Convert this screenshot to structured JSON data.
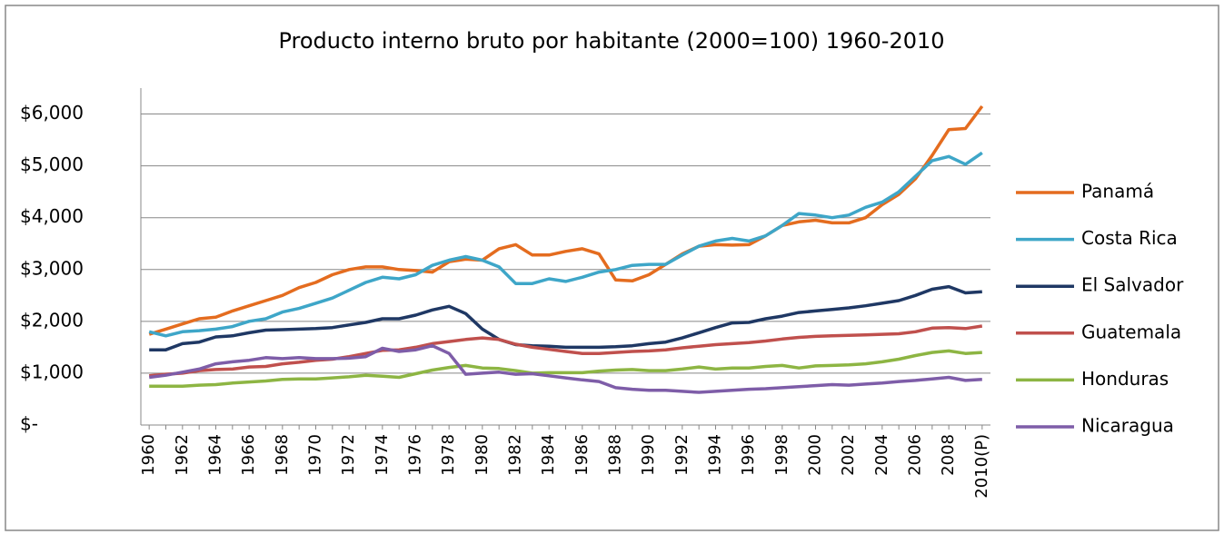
{
  "chart_data": {
    "type": "line",
    "title": "Producto interno bruto por habitante (2000=100) 1960-2010",
    "categories": [
      "1960",
      null,
      "1962",
      null,
      "1964",
      null,
      "1966",
      null,
      "1968",
      null,
      "1970",
      null,
      "1972",
      null,
      "1974",
      null,
      "1976",
      null,
      "1978",
      null,
      "1980",
      null,
      "1982",
      null,
      "1984",
      null,
      "1986",
      null,
      "1988",
      null,
      "1990",
      null,
      "1992",
      null,
      "1994",
      null,
      "1996",
      null,
      "1998",
      null,
      "2000",
      null,
      "2002",
      null,
      "2004",
      null,
      "2006",
      null,
      "2008",
      null,
      "2010(P)"
    ],
    "series": [
      {
        "name": "Panamá",
        "color": "#e46c1f",
        "values": [
          1750,
          1850,
          1950,
          2050,
          2080,
          2200,
          2300,
          2400,
          2500,
          2650,
          2750,
          2900,
          3000,
          3050,
          3050,
          3000,
          2980,
          2950,
          3150,
          3200,
          3180,
          3400,
          3480,
          3280,
          3280,
          3350,
          3400,
          3300,
          2800,
          2780,
          2900,
          3100,
          3300,
          3450,
          3480,
          3470,
          3480,
          3650,
          3850,
          3920,
          3950,
          3900,
          3900,
          4000,
          4250,
          4450,
          4750,
          5200,
          5700,
          5720,
          6150
        ]
      },
      {
        "name": "Costa Rica",
        "color": "#3ea6c8",
        "values": [
          1800,
          1720,
          1800,
          1820,
          1850,
          1900,
          2000,
          2050,
          2180,
          2250,
          2350,
          2450,
          2600,
          2750,
          2850,
          2820,
          2900,
          3080,
          3180,
          3250,
          3180,
          3050,
          2730,
          2730,
          2820,
          2770,
          2850,
          2950,
          3000,
          3080,
          3100,
          3100,
          3280,
          3450,
          3550,
          3600,
          3550,
          3650,
          3850,
          4080,
          4050,
          4000,
          4050,
          4200,
          4300,
          4500,
          4800,
          5100,
          5180,
          5030,
          5250
        ]
      },
      {
        "name": "El Salvador",
        "color": "#1f3864",
        "values": [
          1450,
          1450,
          1570,
          1600,
          1700,
          1720,
          1780,
          1830,
          1840,
          1850,
          1860,
          1880,
          1930,
          1980,
          2050,
          2050,
          2120,
          2220,
          2290,
          2150,
          1850,
          1650,
          1550,
          1530,
          1520,
          1500,
          1500,
          1500,
          1510,
          1530,
          1570,
          1600,
          1680,
          1780,
          1880,
          1970,
          1980,
          2050,
          2100,
          2170,
          2200,
          2230,
          2260,
          2300,
          2350,
          2400,
          2500,
          2620,
          2670,
          2550,
          2570
        ]
      },
      {
        "name": "Guatemala",
        "color": "#c0504d",
        "values": [
          950,
          980,
          1000,
          1050,
          1070,
          1080,
          1120,
          1130,
          1180,
          1210,
          1250,
          1270,
          1320,
          1380,
          1440,
          1450,
          1500,
          1570,
          1610,
          1650,
          1680,
          1650,
          1560,
          1500,
          1460,
          1420,
          1380,
          1380,
          1400,
          1420,
          1430,
          1450,
          1490,
          1520,
          1550,
          1570,
          1590,
          1620,
          1660,
          1690,
          1710,
          1720,
          1730,
          1740,
          1750,
          1760,
          1800,
          1870,
          1880,
          1860,
          1910
        ]
      },
      {
        "name": "Honduras",
        "color": "#8db543",
        "values": [
          750,
          750,
          750,
          770,
          780,
          810,
          830,
          850,
          880,
          890,
          890,
          910,
          930,
          960,
          940,
          920,
          990,
          1060,
          1110,
          1150,
          1100,
          1090,
          1050,
          1000,
          1010,
          1010,
          1010,
          1040,
          1060,
          1070,
          1050,
          1050,
          1080,
          1120,
          1080,
          1100,
          1100,
          1130,
          1150,
          1100,
          1140,
          1150,
          1160,
          1180,
          1220,
          1270,
          1340,
          1400,
          1430,
          1380,
          1400
        ]
      },
      {
        "name": "Nicaragua",
        "color": "#7e5da8",
        "values": [
          920,
          960,
          1020,
          1080,
          1180,
          1220,
          1250,
          1300,
          1280,
          1300,
          1280,
          1280,
          1290,
          1320,
          1480,
          1420,
          1450,
          1530,
          1380,
          980,
          1000,
          1020,
          980,
          990,
          950,
          910,
          870,
          840,
          720,
          690,
          670,
          670,
          650,
          630,
          650,
          670,
          690,
          700,
          720,
          740,
          760,
          780,
          770,
          790,
          810,
          840,
          860,
          890,
          920,
          860,
          880
        ]
      }
    ],
    "ylim": [
      0,
      6500
    ],
    "yticks": [
      {
        "value": 0,
        "label": "$-"
      },
      {
        "value": 1000,
        "label": "$1,000"
      },
      {
        "value": 2000,
        "label": "$2,000"
      },
      {
        "value": 3000,
        "label": "$3,000"
      },
      {
        "value": 4000,
        "label": "$4,000"
      },
      {
        "value": 5000,
        "label": "$5,000"
      },
      {
        "value": 6000,
        "label": "$6,000"
      }
    ],
    "grid": true
  }
}
